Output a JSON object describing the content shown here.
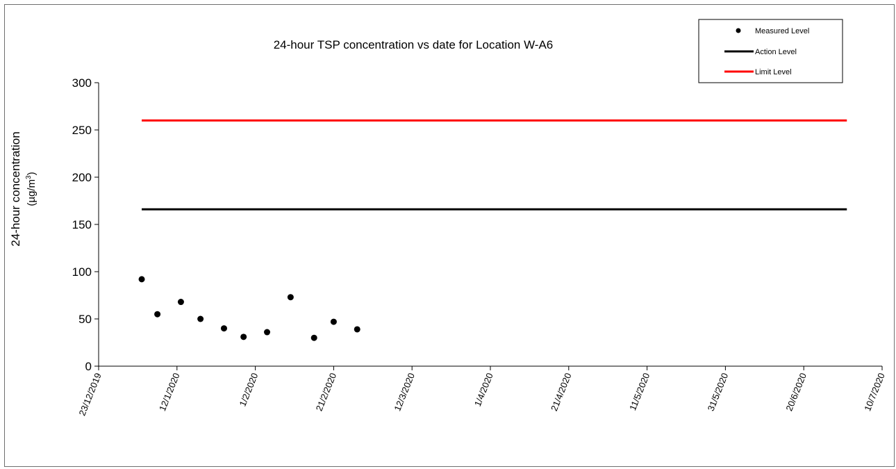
{
  "chart_data": {
    "type": "scatter",
    "title": "24-hour TSP concentration vs date for Location W-A6",
    "ylabel_line1": "24-hour concentration",
    "ylabel_line2_prefix": "(µg/m",
    "ylabel_line2_sup": "3",
    "ylabel_line2_suffix": ")",
    "ylim": [
      0,
      300
    ],
    "yticks": [
      0,
      50,
      100,
      150,
      200,
      250,
      300
    ],
    "xlim": [
      "2019-12-23",
      "2020-07-10"
    ],
    "xticks": [
      {
        "date": "2019-12-23",
        "label": "23/12/2019"
      },
      {
        "date": "2020-01-12",
        "label": "12/1/2020"
      },
      {
        "date": "2020-02-01",
        "label": "1/2/2020"
      },
      {
        "date": "2020-02-21",
        "label": "21/2/2020"
      },
      {
        "date": "2020-03-12",
        "label": "12/3/2020"
      },
      {
        "date": "2020-04-01",
        "label": "1/4/2020"
      },
      {
        "date": "2020-04-21",
        "label": "21/4/2020"
      },
      {
        "date": "2020-05-11",
        "label": "11/5/2020"
      },
      {
        "date": "2020-05-31",
        "label": "31/5/2020"
      },
      {
        "date": "2020-06-20",
        "label": "20/6/2020"
      },
      {
        "date": "2020-07-10",
        "label": "10/7/2020"
      }
    ],
    "series": [
      {
        "name": "Measured Level",
        "kind": "marker",
        "color": "#000000",
        "points": [
          {
            "x": "2020-01-03",
            "y": 92
          },
          {
            "x": "2020-01-07",
            "y": 55
          },
          {
            "x": "2020-01-13",
            "y": 68
          },
          {
            "x": "2020-01-18",
            "y": 50
          },
          {
            "x": "2020-01-24",
            "y": 40
          },
          {
            "x": "2020-01-29",
            "y": 31
          },
          {
            "x": "2020-02-04",
            "y": 36
          },
          {
            "x": "2020-02-10",
            "y": 73
          },
          {
            "x": "2020-02-16",
            "y": 30
          },
          {
            "x": "2020-02-21",
            "y": 47
          },
          {
            "x": "2020-02-27",
            "y": 39
          }
        ]
      },
      {
        "name": "Action Level",
        "kind": "line",
        "color": "#000000",
        "points": [
          {
            "x": "2020-01-03",
            "y": 166
          },
          {
            "x": "2020-07-01",
            "y": 166
          }
        ]
      },
      {
        "name": "Limit Level",
        "kind": "line",
        "color": "#ff0000",
        "points": [
          {
            "x": "2020-01-03",
            "y": 260
          },
          {
            "x": "2020-07-01",
            "y": 260
          }
        ]
      }
    ],
    "legend_position": "top-right",
    "grid": false
  }
}
